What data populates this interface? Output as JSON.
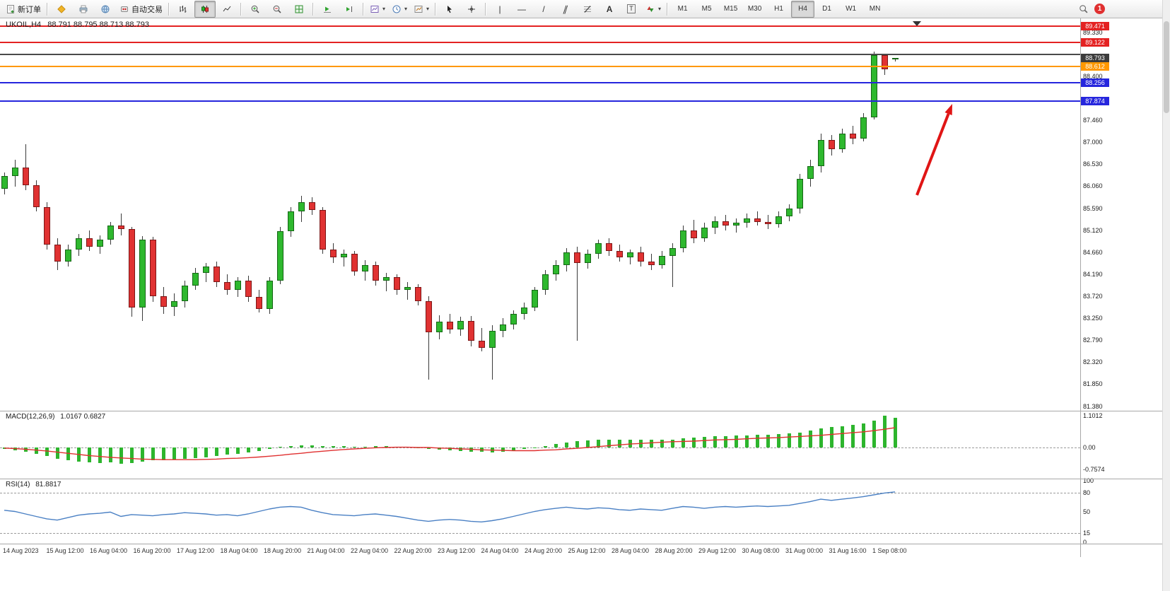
{
  "toolbar": {
    "new_order_label": "新订单",
    "autotrading_label": "自动交易",
    "icons": {
      "chevron": "▾",
      "vline": "|",
      "hline": "—",
      "trendline": "/",
      "channel": "∥",
      "text_tool": "A",
      "label_tool": "T"
    },
    "timeframes": [
      "M1",
      "M5",
      "M15",
      "M30",
      "H1",
      "H4",
      "D1",
      "W1",
      "MN"
    ],
    "active_timeframe": "H4",
    "notification_count": "1"
  },
  "chart": {
    "symbol_period": "UKOIL,H4",
    "ohlc": "88.791 88.795 88.713 88.793"
  },
  "chart_data": {
    "type": "candlestick",
    "symbol": "UKOIL",
    "timeframe": "H4",
    "current_bar": {
      "open": 88.791,
      "high": 88.795,
      "low": 88.713,
      "close": 88.793
    },
    "price_axis": {
      "min": 81.3,
      "max": 89.6,
      "ticks": [
        "89.330",
        "88.400",
        "87.460",
        "87.000",
        "86.530",
        "86.060",
        "85.590",
        "85.120",
        "84.660",
        "84.190",
        "83.720",
        "83.250",
        "82.790",
        "82.320",
        "81.850",
        "81.380"
      ]
    },
    "hlines": [
      {
        "price": 89.471,
        "color": "#e42222",
        "tag": "89.471"
      },
      {
        "price": 89.122,
        "color": "#e42222",
        "tag": "89.122"
      },
      {
        "price": 88.86,
        "color": "#4a4a4a",
        "tag": ""
      },
      {
        "price": 88.612,
        "color": "#ff9800",
        "tag": "88.612"
      },
      {
        "price": 88.256,
        "color": "#2626dd",
        "tag": "88.256"
      },
      {
        "price": 87.874,
        "color": "#2626dd",
        "tag": "87.874"
      }
    ],
    "current_price_tag": {
      "price": 88.793,
      "text": "88.793",
      "bg": "#3c3c3c"
    },
    "colors": {
      "bull": "#2eb82e",
      "bull_border": "#156615",
      "bear": "#e03232",
      "bear_border": "#7d1616",
      "wick": "#3a3a3a",
      "macd_histogram": "#2db52d",
      "macd_signal": "#e03030",
      "rsi_line": "#4a80c4",
      "annotation_arrow": "#e01515"
    },
    "candles": [
      [
        86.0,
        86.35,
        85.88,
        86.28
      ],
      [
        86.28,
        86.62,
        86.05,
        86.45
      ],
      [
        86.45,
        86.95,
        85.98,
        86.08
      ],
      [
        86.08,
        86.18,
        85.52,
        85.62
      ],
      [
        85.62,
        85.72,
        84.72,
        84.82
      ],
      [
        84.82,
        84.95,
        84.28,
        84.45
      ],
      [
        84.45,
        84.82,
        84.35,
        84.72
      ],
      [
        84.72,
        85.05,
        84.58,
        84.95
      ],
      [
        84.95,
        85.12,
        84.68,
        84.78
      ],
      [
        84.78,
        85.02,
        84.62,
        84.92
      ],
      [
        84.92,
        85.3,
        84.82,
        85.22
      ],
      [
        85.22,
        85.48,
        85.02,
        85.15
      ],
      [
        85.15,
        85.2,
        83.28,
        83.48
      ],
      [
        83.48,
        85.0,
        83.2,
        84.92
      ],
      [
        84.92,
        84.98,
        83.6,
        83.72
      ],
      [
        83.72,
        83.92,
        83.35,
        83.5
      ],
      [
        83.5,
        83.78,
        83.3,
        83.62
      ],
      [
        83.62,
        84.05,
        83.48,
        83.95
      ],
      [
        83.95,
        84.32,
        83.85,
        84.22
      ],
      [
        84.22,
        84.42,
        84.02,
        84.35
      ],
      [
        84.35,
        84.45,
        83.92,
        84.02
      ],
      [
        84.02,
        84.18,
        83.75,
        83.85
      ],
      [
        83.85,
        84.12,
        83.7,
        84.05
      ],
      [
        84.05,
        84.15,
        83.6,
        83.7
      ],
      [
        83.7,
        83.85,
        83.38,
        83.45
      ],
      [
        83.45,
        84.12,
        83.35,
        84.05
      ],
      [
        84.05,
        85.2,
        83.98,
        85.1
      ],
      [
        85.1,
        85.62,
        84.98,
        85.52
      ],
      [
        85.52,
        85.85,
        85.3,
        85.72
      ],
      [
        85.72,
        85.82,
        85.45,
        85.55
      ],
      [
        85.55,
        85.62,
        84.62,
        84.72
      ],
      [
        84.72,
        84.85,
        84.42,
        84.55
      ],
      [
        84.55,
        84.72,
        84.35,
        84.62
      ],
      [
        84.62,
        84.68,
        84.15,
        84.25
      ],
      [
        84.25,
        84.48,
        84.05,
        84.38
      ],
      [
        84.38,
        84.45,
        83.95,
        84.05
      ],
      [
        84.05,
        84.22,
        83.82,
        84.12
      ],
      [
        84.12,
        84.18,
        83.75,
        83.85
      ],
      [
        83.85,
        84.02,
        83.65,
        83.92
      ],
      [
        83.92,
        83.98,
        83.52,
        83.62
      ],
      [
        83.62,
        83.72,
        81.95,
        82.95
      ],
      [
        82.95,
        83.32,
        82.8,
        83.18
      ],
      [
        83.18,
        83.35,
        82.92,
        83.02
      ],
      [
        83.02,
        83.28,
        82.88,
        83.2
      ],
      [
        83.2,
        83.3,
        82.65,
        82.78
      ],
      [
        82.78,
        83.05,
        82.55,
        82.62
      ],
      [
        82.62,
        83.1,
        81.95,
        82.98
      ],
      [
        82.98,
        83.25,
        82.85,
        83.12
      ],
      [
        83.12,
        83.42,
        83.02,
        83.35
      ],
      [
        83.35,
        83.58,
        83.22,
        83.48
      ],
      [
        83.48,
        83.92,
        83.4,
        83.85
      ],
      [
        83.85,
        84.28,
        83.75,
        84.18
      ],
      [
        84.18,
        84.48,
        84.05,
        84.38
      ],
      [
        84.38,
        84.75,
        84.25,
        84.65
      ],
      [
        84.65,
        84.78,
        82.78,
        84.42
      ],
      [
        84.42,
        84.72,
        84.3,
        84.62
      ],
      [
        84.62,
        84.92,
        84.52,
        84.85
      ],
      [
        84.85,
        84.95,
        84.58,
        84.68
      ],
      [
        84.68,
        84.82,
        84.45,
        84.55
      ],
      [
        84.55,
        84.72,
        84.4,
        84.65
      ],
      [
        84.65,
        84.78,
        84.35,
        84.45
      ],
      [
        84.45,
        84.62,
        84.28,
        84.38
      ],
      [
        84.38,
        84.68,
        84.3,
        84.58
      ],
      [
        84.58,
        84.85,
        83.92,
        84.75
      ],
      [
        84.75,
        85.22,
        84.65,
        85.12
      ],
      [
        85.12,
        85.35,
        84.85,
        84.95
      ],
      [
        84.95,
        85.28,
        84.88,
        85.18
      ],
      [
        85.18,
        85.42,
        85.05,
        85.32
      ],
      [
        85.32,
        85.45,
        85.12,
        85.22
      ],
      [
        85.22,
        85.38,
        85.08,
        85.28
      ],
      [
        85.28,
        85.48,
        85.18,
        85.38
      ],
      [
        85.38,
        85.52,
        85.22,
        85.3
      ],
      [
        85.3,
        85.45,
        85.15,
        85.25
      ],
      [
        85.25,
        85.52,
        85.18,
        85.42
      ],
      [
        85.42,
        85.68,
        85.32,
        85.58
      ],
      [
        85.58,
        86.32,
        85.48,
        86.22
      ],
      [
        86.22,
        86.62,
        86.05,
        86.48
      ],
      [
        86.48,
        87.18,
        86.35,
        87.05
      ],
      [
        87.05,
        87.15,
        86.72,
        86.85
      ],
      [
        86.85,
        87.28,
        86.78,
        87.18
      ],
      [
        87.18,
        87.35,
        86.95,
        87.08
      ],
      [
        87.08,
        87.62,
        87.02,
        87.52
      ],
      [
        87.52,
        88.92,
        87.48,
        88.85
      ],
      [
        88.85,
        88.88,
        88.42,
        88.55
      ],
      [
        88.791,
        88.795,
        88.713,
        88.793
      ]
    ],
    "x_labels": [
      "14 Aug 2023",
      "15 Aug 12:00",
      "16 Aug 04:00",
      "16 Aug 20:00",
      "17 Aug 12:00",
      "18 Aug 04:00",
      "18 Aug 20:00",
      "21 Aug 04:00",
      "22 Aug 04:00",
      "22 Aug 20:00",
      "23 Aug 12:00",
      "24 Aug 04:00",
      "24 Aug 20:00",
      "25 Aug 12:00",
      "28 Aug 04:00",
      "28 Aug 20:00",
      "29 Aug 12:00",
      "30 Aug 08:00",
      "31 Aug 00:00",
      "31 Aug 16:00",
      "1 Sep 08:00"
    ],
    "macd": {
      "title": "MACD(12,26,9)",
      "values_text": "1.0167 0.6827",
      "axis": [
        "1.1012",
        "0.00",
        "-0.7574"
      ],
      "histogram": [
        -0.05,
        -0.1,
        -0.15,
        -0.22,
        -0.3,
        -0.38,
        -0.44,
        -0.48,
        -0.52,
        -0.54,
        -0.52,
        -0.55,
        -0.53,
        -0.48,
        -0.45,
        -0.44,
        -0.42,
        -0.38,
        -0.36,
        -0.34,
        -0.3,
        -0.25,
        -0.22,
        -0.18,
        -0.12,
        -0.06,
        0.02,
        0.06,
        0.08,
        0.08,
        0.06,
        0.05,
        0.04,
        0.03,
        0.03,
        0.04,
        0.04,
        0.03,
        0.02,
        -0.02,
        -0.06,
        -0.08,
        -0.1,
        -0.12,
        -0.14,
        -0.15,
        -0.16,
        -0.14,
        -0.1,
        -0.06,
        0.0,
        0.06,
        0.12,
        0.18,
        0.22,
        0.24,
        0.26,
        0.27,
        0.28,
        0.28,
        0.27,
        0.26,
        0.26,
        0.28,
        0.31,
        0.34,
        0.36,
        0.38,
        0.4,
        0.41,
        0.42,
        0.43,
        0.44,
        0.46,
        0.48,
        0.52,
        0.58,
        0.65,
        0.7,
        0.74,
        0.78,
        0.84,
        0.92,
        1.1012,
        1.0167
      ],
      "signal": [
        -0.02,
        -0.04,
        -0.06,
        -0.09,
        -0.12,
        -0.16,
        -0.2,
        -0.24,
        -0.28,
        -0.31,
        -0.34,
        -0.36,
        -0.38,
        -0.4,
        -0.41,
        -0.42,
        -0.42,
        -0.42,
        -0.42,
        -0.41,
        -0.4,
        -0.38,
        -0.37,
        -0.35,
        -0.33,
        -0.3,
        -0.27,
        -0.23,
        -0.2,
        -0.16,
        -0.13,
        -0.1,
        -0.07,
        -0.05,
        -0.03,
        -0.01,
        0.0,
        0.01,
        0.01,
        0.0,
        0.0,
        -0.02,
        -0.03,
        -0.05,
        -0.06,
        -0.08,
        -0.09,
        -0.1,
        -0.11,
        -0.11,
        -0.11,
        -0.09,
        -0.08,
        -0.05,
        -0.03,
        0.0,
        0.03,
        0.06,
        0.09,
        0.12,
        0.14,
        0.16,
        0.18,
        0.2,
        0.21,
        0.22,
        0.24,
        0.26,
        0.27,
        0.28,
        0.3,
        0.32,
        0.33,
        0.34,
        0.36,
        0.38,
        0.4,
        0.42,
        0.45,
        0.48,
        0.51,
        0.54,
        0.58,
        0.63,
        0.6827
      ]
    },
    "rsi": {
      "title": "RSI(14)",
      "value_text": "81.8817",
      "axis": [
        "100",
        "80",
        "50",
        "15",
        "0"
      ],
      "levels": [
        80,
        15
      ],
      "series": [
        52,
        50,
        46,
        42,
        38,
        36,
        40,
        44,
        46,
        47,
        49,
        42,
        45,
        44,
        43,
        45,
        46,
        48,
        47,
        46,
        44,
        45,
        43,
        46,
        50,
        54,
        57,
        58,
        57,
        52,
        48,
        45,
        44,
        43,
        45,
        46,
        44,
        42,
        39,
        36,
        34,
        36,
        37,
        36,
        34,
        33,
        35,
        38,
        42,
        46,
        50,
        53,
        55,
        57,
        55,
        54,
        56,
        55,
        53,
        52,
        54,
        53,
        52,
        55,
        58,
        57,
        55,
        57,
        58,
        57,
        58,
        59,
        58,
        59,
        60,
        63,
        66,
        70,
        68,
        70,
        72,
        74,
        77,
        80,
        81.8817
      ]
    }
  }
}
